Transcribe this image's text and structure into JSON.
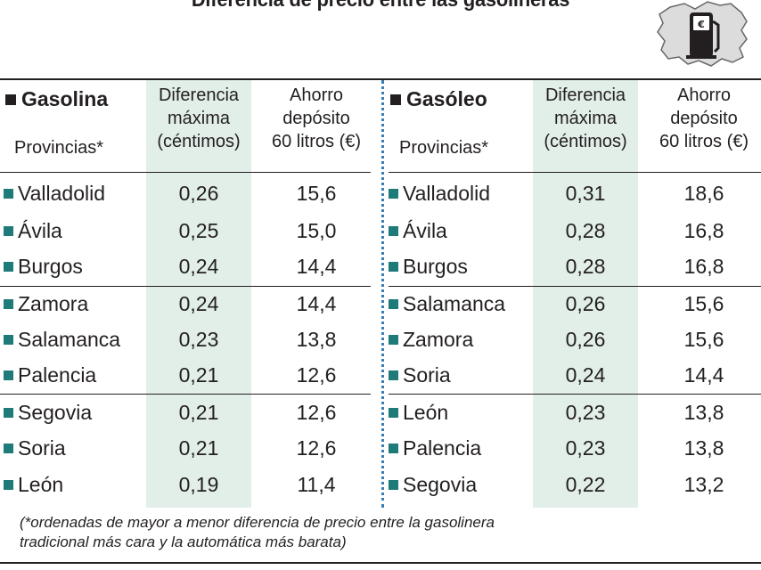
{
  "title": "Diferencia de precio entre las gasolineras",
  "colors": {
    "shade": "#e2efe9",
    "marker": "#1f7a7a",
    "divider": "#3a7db5",
    "text": "#231f20"
  },
  "icon": "fuel-pump-map-icon",
  "chart_data": {
    "type": "table",
    "title": "Diferencia de precio entre las gasolineras",
    "note": "(*ordenadas de mayor a menor diferencia de precio entre la gasolinera tradicional más cara y la automática más barata)",
    "tables": [
      {
        "name": "Gasolina",
        "sub": "Provincias*",
        "col1": [
          "Diferencia",
          "máxima",
          "(céntimos)"
        ],
        "col2": [
          "Ahorro",
          "depósito",
          "60 litros (€)"
        ],
        "rows": [
          {
            "provincia": "Valladolid",
            "diferencia": "0,26",
            "ahorro": "15,6"
          },
          {
            "provincia": "Ávila",
            "diferencia": "0,25",
            "ahorro": "15,0"
          },
          {
            "provincia": "Burgos",
            "diferencia": "0,24",
            "ahorro": "14,4"
          },
          {
            "provincia": "Zamora",
            "diferencia": "0,24",
            "ahorro": "14,4"
          },
          {
            "provincia": "Salamanca",
            "diferencia": "0,23",
            "ahorro": "13,8"
          },
          {
            "provincia": "Palencia",
            "diferencia": "0,21",
            "ahorro": "12,6"
          },
          {
            "provincia": "Segovia",
            "diferencia": "0,21",
            "ahorro": "12,6"
          },
          {
            "provincia": "Soria",
            "diferencia": "0,21",
            "ahorro": "12,6"
          },
          {
            "provincia": "León",
            "diferencia": "0,19",
            "ahorro": "11,4"
          }
        ]
      },
      {
        "name": "Gasóleo",
        "sub": "Provincias*",
        "col1": [
          "Diferencia",
          "máxima",
          "(céntimos)"
        ],
        "col2": [
          "Ahorro",
          "depósito",
          "60 litros (€)"
        ],
        "rows": [
          {
            "provincia": "Valladolid",
            "diferencia": "0,31",
            "ahorro": "18,6"
          },
          {
            "provincia": "Ávila",
            "diferencia": "0,28",
            "ahorro": "16,8"
          },
          {
            "provincia": "Burgos",
            "diferencia": "0,28",
            "ahorro": "16,8"
          },
          {
            "provincia": "Salamanca",
            "diferencia": "0,26",
            "ahorro": "15,6"
          },
          {
            "provincia": "Zamora",
            "diferencia": "0,26",
            "ahorro": "15,6"
          },
          {
            "provincia": "Soria",
            "diferencia": "0,24",
            "ahorro": "14,4"
          },
          {
            "provincia": "León",
            "diferencia": "0,23",
            "ahorro": "13,8"
          },
          {
            "provincia": "Palencia",
            "diferencia": "0,23",
            "ahorro": "13,8"
          },
          {
            "provincia": "Segovia",
            "diferencia": "0,22",
            "ahorro": "13,2"
          }
        ]
      }
    ]
  }
}
